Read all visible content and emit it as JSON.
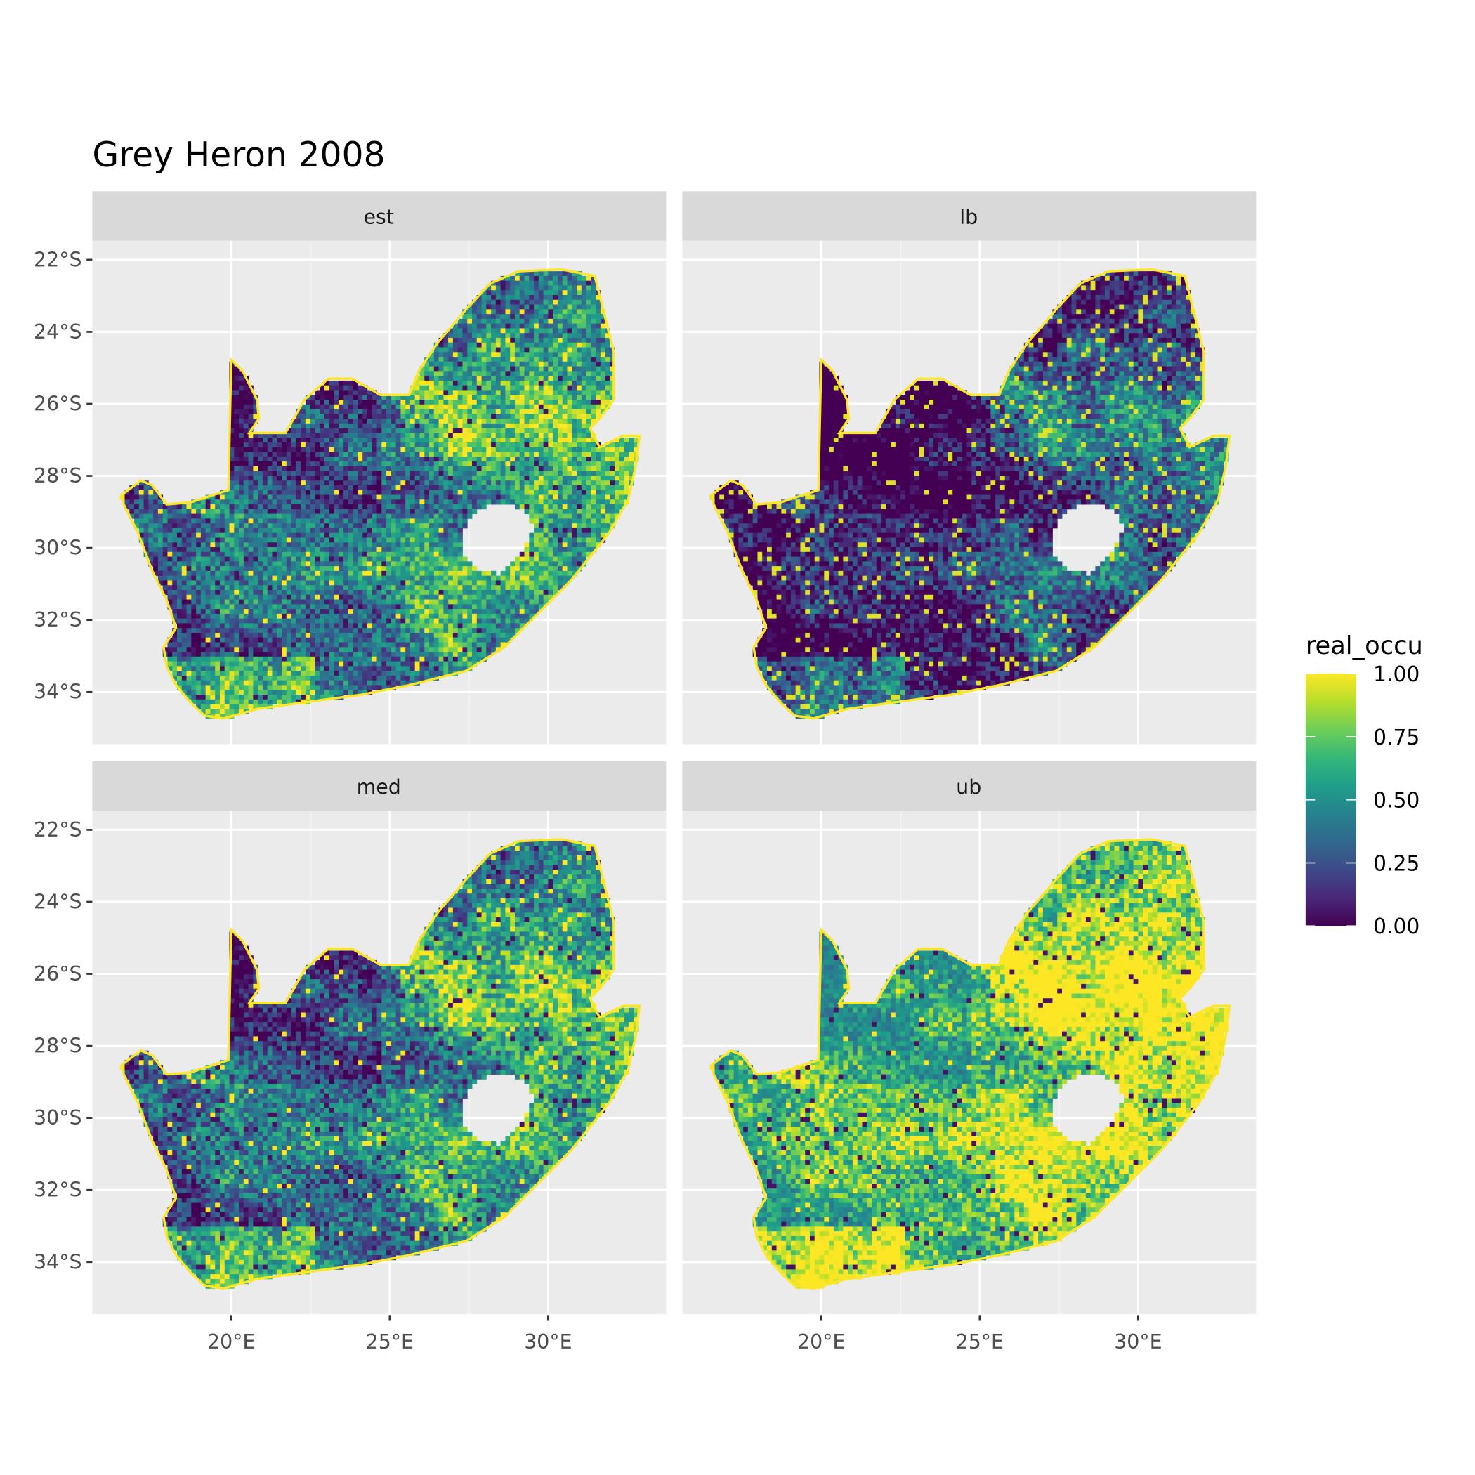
{
  "chart_data": {
    "type": "heatmap",
    "title": "Grey Heron 2008",
    "facets": [
      "est",
      "lb",
      "med",
      "ub"
    ],
    "facet_grid": {
      "rows": 2,
      "cols": 2
    },
    "xlabel": "",
    "ylabel": "",
    "x_ticks": [
      "20°E",
      "25°E",
      "30°E"
    ],
    "x_tick_values": [
      20,
      25,
      30
    ],
    "y_ticks": [
      "22°S",
      "24°S",
      "26°S",
      "28°S",
      "30°S",
      "32°S",
      "34°S"
    ],
    "y_tick_values": [
      -22,
      -24,
      -26,
      -28,
      -30,
      -32,
      -34
    ],
    "xlim": [
      15.6,
      33.7
    ],
    "ylim": [
      -35.4,
      -21.6
    ],
    "grid": true,
    "legend": {
      "title": "real_occu",
      "placement": "right",
      "colormap": "viridis",
      "range": [
        0,
        1
      ],
      "ticks": [
        "1.00",
        "0.75",
        "0.50",
        "0.25",
        "0.00"
      ],
      "tick_values": [
        1,
        0.75,
        0.5,
        0.25,
        0
      ]
    },
    "facet_mean_level": {
      "est": 0.55,
      "lb": 0.3,
      "med": 0.55,
      "ub": 0.8
    }
  },
  "colors": {
    "panel_bg": "#EBEBEB",
    "strip_bg": "#D9D9D9",
    "grid": "#FFFFFF",
    "axis_text": "#4D4D4D"
  }
}
